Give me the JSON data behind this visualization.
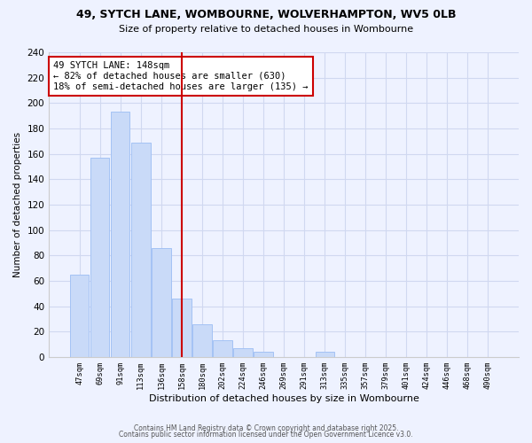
{
  "title1": "49, SYTCH LANE, WOMBOURNE, WOLVERHAMPTON, WV5 0LB",
  "title2": "Size of property relative to detached houses in Wombourne",
  "xlabel": "Distribution of detached houses by size in Wombourne",
  "ylabel": "Number of detached properties",
  "bar_labels": [
    "47sqm",
    "69sqm",
    "91sqm",
    "113sqm",
    "136sqm",
    "158sqm",
    "180sqm",
    "202sqm",
    "224sqm",
    "246sqm",
    "269sqm",
    "291sqm",
    "313sqm",
    "335sqm",
    "357sqm",
    "379sqm",
    "401sqm",
    "424sqm",
    "446sqm",
    "468sqm",
    "490sqm"
  ],
  "bar_values": [
    65,
    157,
    193,
    169,
    86,
    46,
    26,
    13,
    7,
    4,
    0,
    0,
    4,
    0,
    0,
    0,
    0,
    0,
    0,
    0,
    0
  ],
  "bar_color": "#c9daf8",
  "bar_edge_color": "#a4c2f4",
  "property_line_x": 5.0,
  "annotation_line1": "49 SYTCH LANE: 148sqm",
  "annotation_line2": "← 82% of detached houses are smaller (630)",
  "annotation_line3": "18% of semi-detached houses are larger (135) →",
  "annotation_box_color": "white",
  "annotation_box_edge": "#cc0000",
  "line_color": "#cc0000",
  "ylim": [
    0,
    240
  ],
  "yticks": [
    0,
    20,
    40,
    60,
    80,
    100,
    120,
    140,
    160,
    180,
    200,
    220,
    240
  ],
  "footer1": "Contains HM Land Registry data © Crown copyright and database right 2025.",
  "footer2": "Contains public sector information licensed under the Open Government Licence v3.0.",
  "bg_color": "#eef2ff",
  "grid_color": "#d0d8f0",
  "spine_color": "#cccccc"
}
